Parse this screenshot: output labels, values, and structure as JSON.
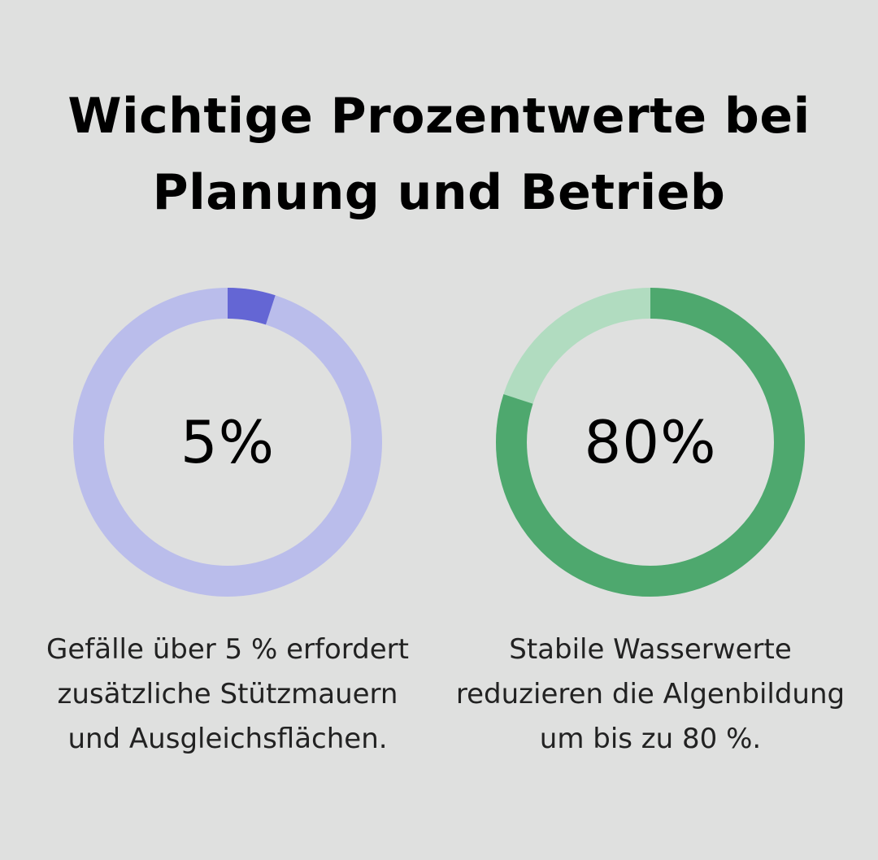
{
  "title": {
    "line1": "Wichtige Prozentwerte bei",
    "line2": "Planung und Betrieb"
  },
  "chart_data": [
    {
      "type": "pie",
      "variant": "donut",
      "value_label": "5%",
      "values": [
        5,
        95
      ],
      "caption": "Gefälle über 5 % erfordert zusätzliche Stützmauern und Ausgleichsflächen.",
      "colors": {
        "highlight": "#6466d4",
        "rest": "#babdeb"
      }
    },
    {
      "type": "pie",
      "variant": "donut",
      "value_label": "80%",
      "values": [
        80,
        20
      ],
      "caption": "Stabile Wasserwerte reduzieren die Algenbildung um bis zu 80 %.",
      "colors": {
        "highlight": "#4ea86e",
        "rest": "#b1dcc0"
      }
    }
  ],
  "background_color": "#dfe0df"
}
